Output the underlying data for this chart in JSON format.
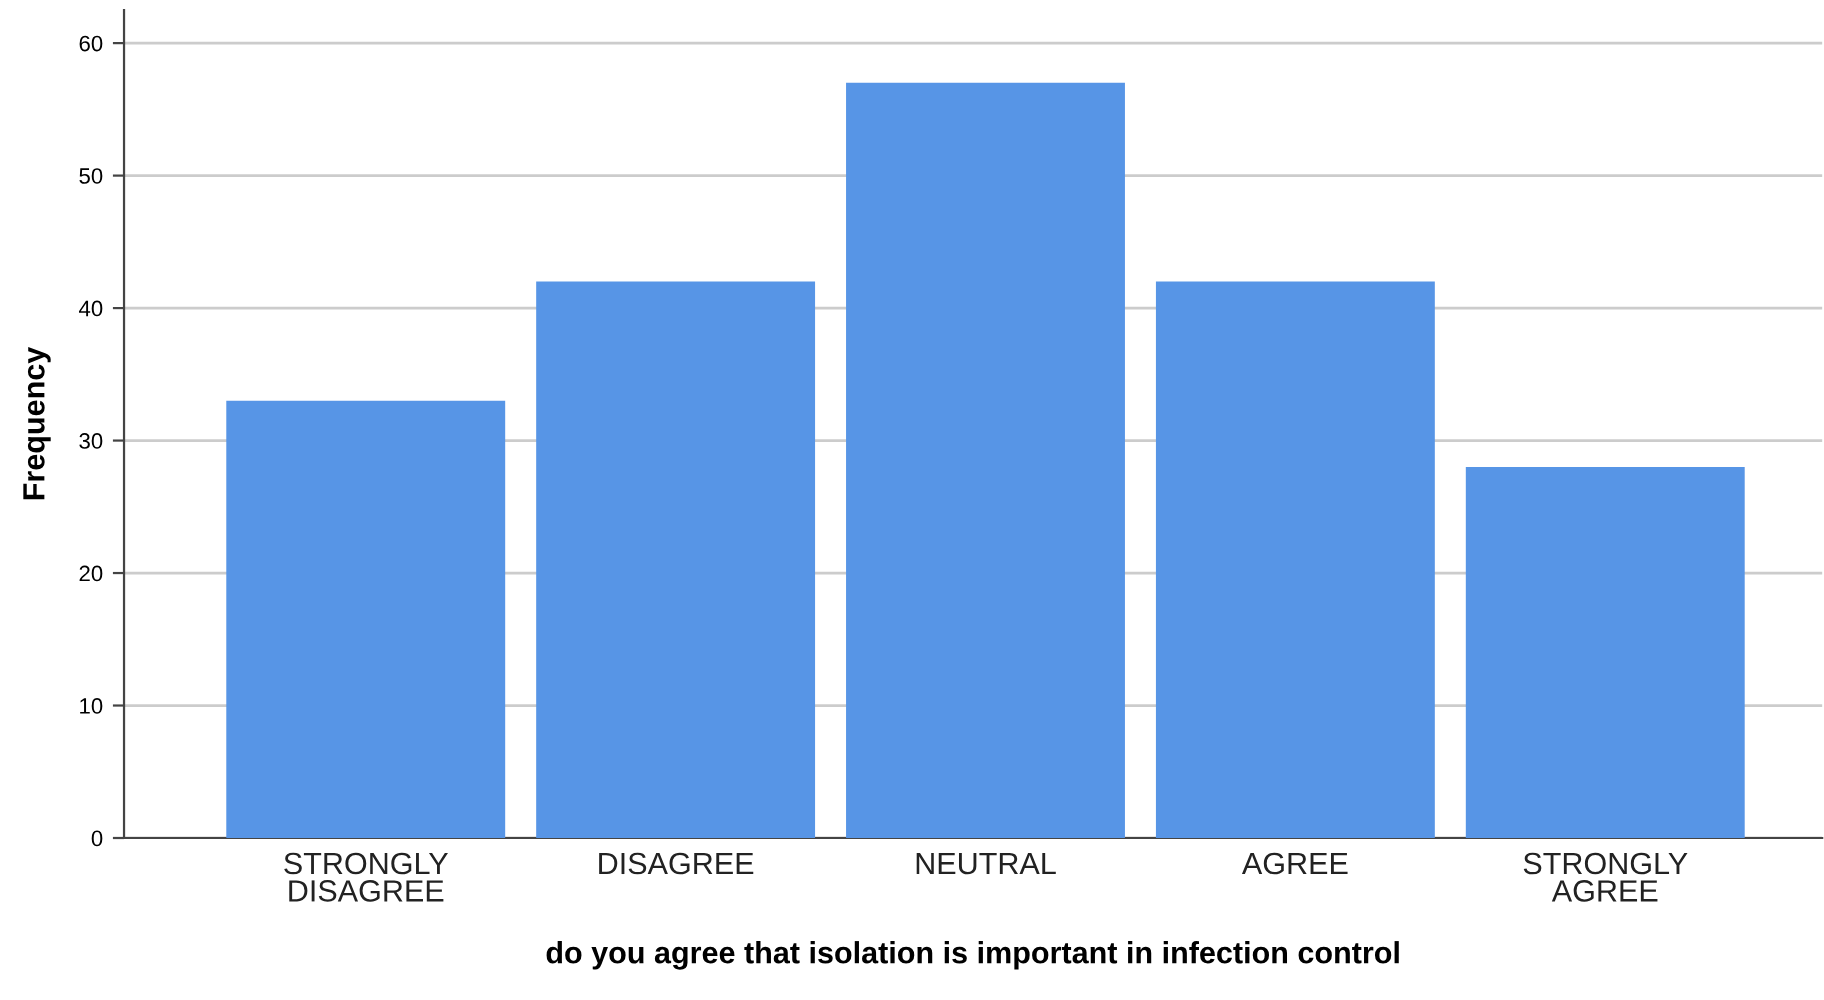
{
  "chart_data": {
    "type": "bar",
    "xlabel": "do you agree that isolation is important in infection control",
    "ylabel": "Frequency",
    "categories": [
      "STRONGLY\nDISAGREE",
      "DISAGREE",
      "NEUTRAL",
      "AGREE",
      "STRONGLY\nAGREE"
    ],
    "values": [
      33,
      42,
      57,
      42,
      28
    ],
    "color": "#5795e6",
    "ylim": [
      0,
      62.5
    ],
    "yticks": [
      0,
      10,
      20,
      30,
      40,
      50,
      60
    ],
    "grid": "y"
  }
}
